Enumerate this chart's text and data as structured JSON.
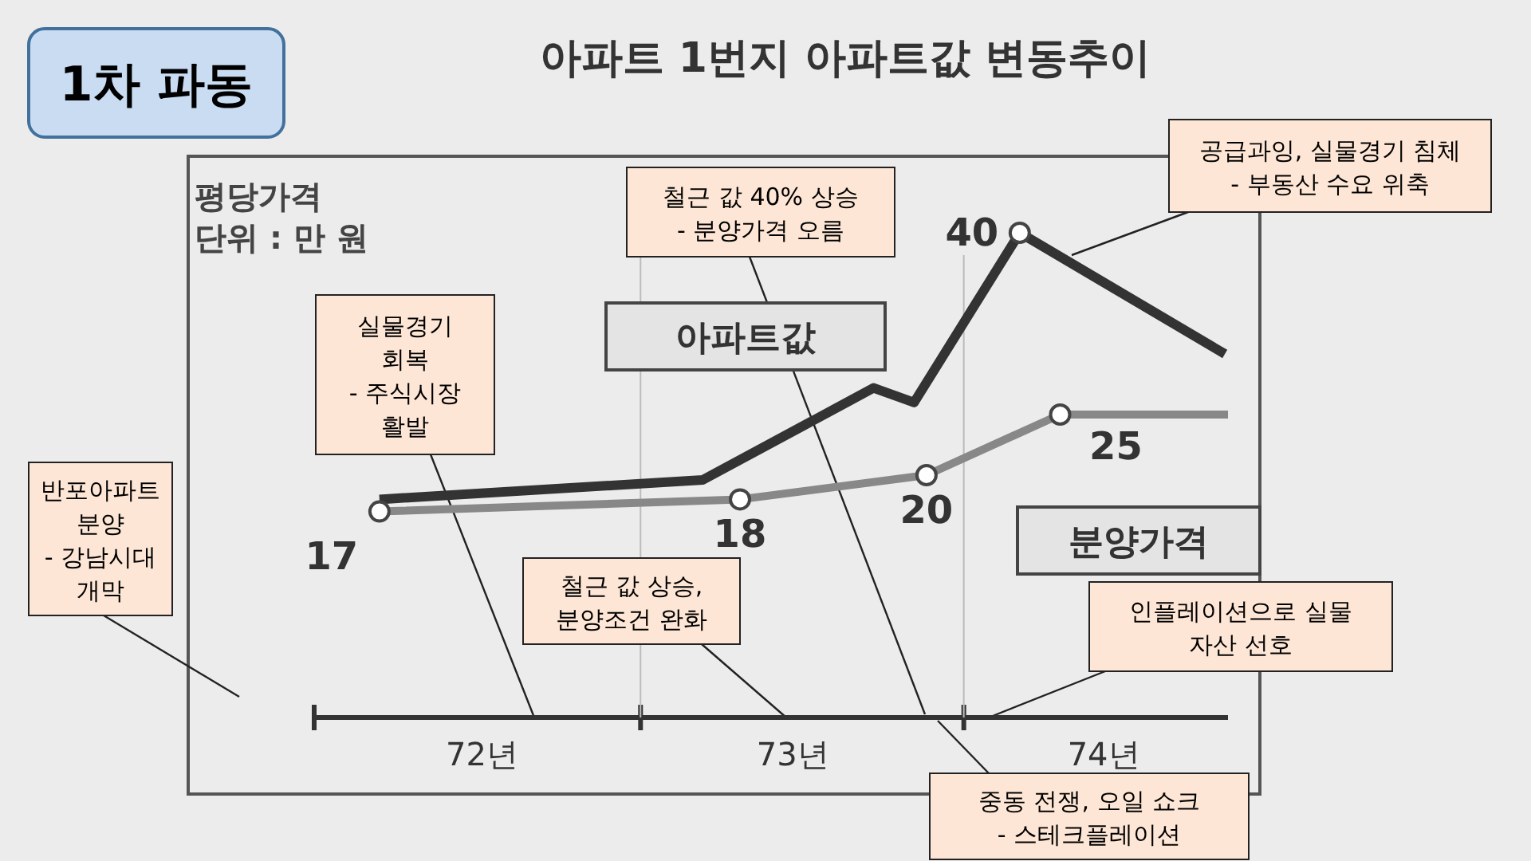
{
  "chart_data": {
    "type": "line",
    "title": "아파트 1번지 아파트값 변동추이",
    "tick_labels": "x",
    "xlim": [
      71.46,
      74.4
    ],
    "xticks": [
      {
        "value": 71.46,
        "label": null
      },
      {
        "value": 72,
        "label": "72년"
      },
      {
        "value": 72.51,
        "label": null
      },
      {
        "value": 73,
        "label": "73년"
      },
      {
        "value": 73.55,
        "label": null
      },
      {
        "value": 74,
        "label": "74년"
      }
    ],
    "series": [
      {
        "name": "아파트값",
        "color": "#333333",
        "x": [
          71.67,
          72.71,
          73.26,
          73.39,
          73.73,
          74.39
        ],
        "values": [
          18,
          19.6,
          27.2,
          26,
          40,
          30
        ],
        "value_labels": [
          null,
          null,
          null,
          null,
          "40",
          null
        ]
      },
      {
        "name": "분양가격",
        "color": "#888888",
        "marker": "circle",
        "x": [
          71.67,
          72.83,
          73.43,
          73.86,
          74.4
        ],
        "values": [
          17,
          18,
          20,
          25,
          25
        ],
        "value_labels": [
          "17",
          "18",
          "20",
          "25",
          null
        ]
      }
    ],
    "annotations": [
      "1차 파동",
      "평당가격\n단위 : 만 원",
      "반포아파트\n분양\n- 강남시대\n개막",
      "실물경기\n회복\n- 주식시장\n활발",
      "철근 값 40% 상승\n- 분양가격 오름",
      "공급과잉, 실물경기 침체\n- 부동산 수요 위축",
      "철근 값 상승,\n분양조건 완화",
      "인플레이션으로 실물\n자산 선호",
      "중동 전쟁, 오일 쇼크\n- 스테크플레이션"
    ]
  }
}
